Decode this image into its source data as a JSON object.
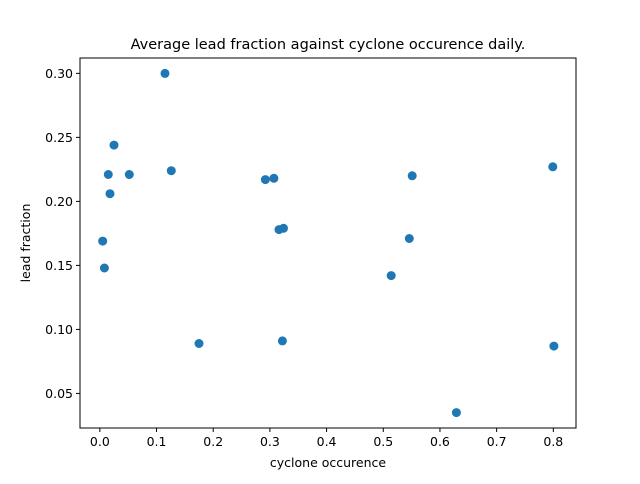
{
  "chart_data": {
    "type": "scatter",
    "title": "Average lead fraction against cyclone occurence daily.",
    "xlabel": "cyclone occurence",
    "ylabel": "lead fraction",
    "xlim": [
      -0.035,
      0.84
    ],
    "ylim": [
      0.023,
      0.312
    ],
    "xticks": [
      0.0,
      0.1,
      0.2,
      0.3,
      0.4,
      0.5,
      0.6,
      0.7,
      0.8
    ],
    "xtick_labels": [
      "0.0",
      "0.1",
      "0.2",
      "0.3",
      "0.4",
      "0.5",
      "0.6",
      "0.7",
      "0.8"
    ],
    "yticks": [
      0.05,
      0.1,
      0.15,
      0.2,
      0.25,
      0.3
    ],
    "ytick_labels": [
      "0.05",
      "0.10",
      "0.15",
      "0.20",
      "0.25",
      "0.30"
    ],
    "grid": false,
    "marker_color": "#1f77b4",
    "points": [
      {
        "x": 0.005,
        "y": 0.169
      },
      {
        "x": 0.008,
        "y": 0.148
      },
      {
        "x": 0.015,
        "y": 0.221
      },
      {
        "x": 0.018,
        "y": 0.206
      },
      {
        "x": 0.025,
        "y": 0.244
      },
      {
        "x": 0.052,
        "y": 0.221
      },
      {
        "x": 0.115,
        "y": 0.3
      },
      {
        "x": 0.126,
        "y": 0.224
      },
      {
        "x": 0.175,
        "y": 0.089
      },
      {
        "x": 0.292,
        "y": 0.217
      },
      {
        "x": 0.307,
        "y": 0.218
      },
      {
        "x": 0.316,
        "y": 0.178
      },
      {
        "x": 0.322,
        "y": 0.091
      },
      {
        "x": 0.324,
        "y": 0.179
      },
      {
        "x": 0.514,
        "y": 0.142
      },
      {
        "x": 0.546,
        "y": 0.171
      },
      {
        "x": 0.551,
        "y": 0.22
      },
      {
        "x": 0.629,
        "y": 0.035
      },
      {
        "x": 0.799,
        "y": 0.227
      },
      {
        "x": 0.801,
        "y": 0.087
      }
    ]
  }
}
